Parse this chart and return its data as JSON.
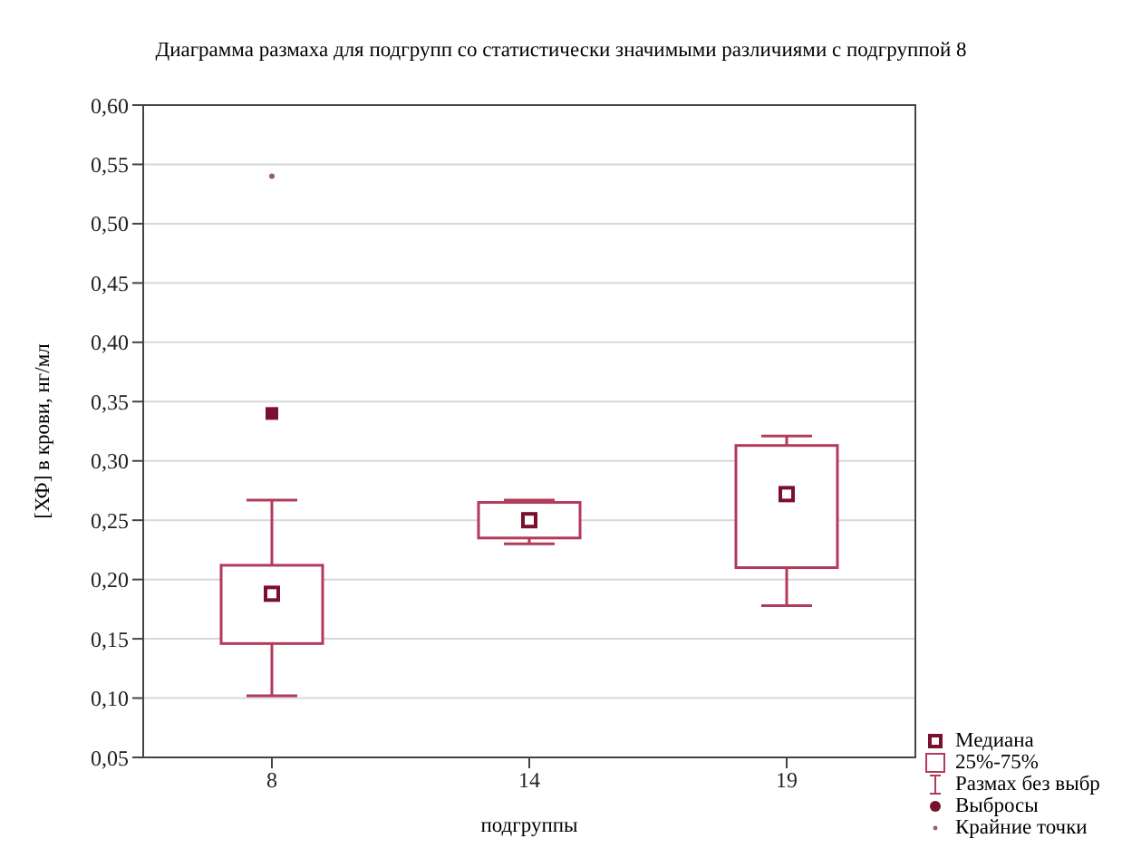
{
  "chart_data": {
    "type": "box",
    "title": "Диаграмма размаха для подгрупп со статистически значимыми различиями с подгруппой 8",
    "xlabel": "подгруппы",
    "ylabel": "[ХФ] в крови, нг/мл",
    "categories": [
      "8",
      "14",
      "19"
    ],
    "boxes": [
      {
        "low": 0.102,
        "q1": 0.146,
        "median": 0.188,
        "q3": 0.212,
        "high": 0.267,
        "outliers": [
          0.34
        ]
      },
      {
        "low": 0.23,
        "q1": 0.235,
        "median": 0.25,
        "q3": 0.265,
        "high": 0.267
      },
      {
        "low": 0.178,
        "q1": 0.21,
        "median": 0.272,
        "q3": 0.313,
        "high": 0.321
      }
    ],
    "color": "#b23a5a",
    "series": [
      {
        "type": "scatter",
        "x": [
          "8"
        ],
        "values": [
          0.54
        ],
        "color": "#9a5a70"
      }
    ],
    "ylim": [
      0.05,
      0.6
    ],
    "yticks": [
      {
        "value": 0.05,
        "label": "0,05"
      },
      {
        "value": 0.1,
        "label": "0,10"
      },
      {
        "value": 0.15,
        "label": "0,15"
      },
      {
        "value": 0.2,
        "label": "0,20"
      },
      {
        "value": 0.25,
        "label": "0,25"
      },
      {
        "value": 0.3,
        "label": "0,30"
      },
      {
        "value": 0.35,
        "label": "0,35"
      },
      {
        "value": 0.4,
        "label": "0,40"
      },
      {
        "value": 0.45,
        "label": "0,45"
      },
      {
        "value": 0.5,
        "label": "0,50"
      },
      {
        "value": 0.55,
        "label": "0,55"
      },
      {
        "value": 0.6,
        "label": "0,60"
      }
    ],
    "grid": "y",
    "annotations": [
      "Медиана",
      "25%-75%",
      "Размах без выбр",
      "Выбросы",
      "Крайние точки"
    ]
  }
}
